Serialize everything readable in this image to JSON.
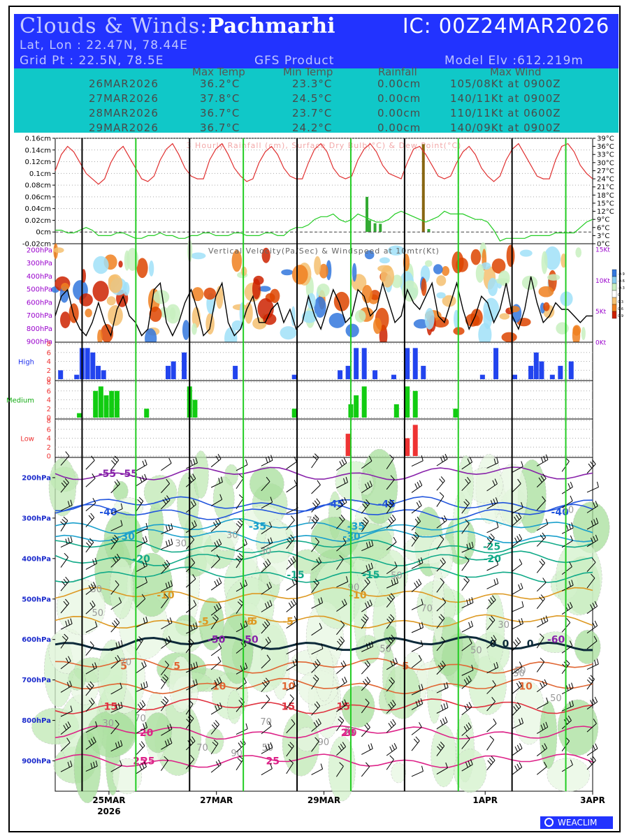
{
  "header": {
    "title_prefix": "Clouds & Winds:",
    "location": "Pachmarhi",
    "ic": "IC: 00Z24MAR2026",
    "latlon": "Lat, Lon : 22.47N, 78.44E",
    "gridpt": "Grid Pt  : 22.5N, 78.5E",
    "product": "GFS Product",
    "model_elv": "Model Elv :612.219m"
  },
  "summary": {
    "columns": [
      "Max Temp",
      "Min Temp",
      "Rainfall",
      "Max Wind"
    ],
    "rows": [
      {
        "date": "26MAR2026",
        "max": "36.2°C",
        "min": "23.3°C",
        "rain": "0.00cm",
        "wind": "105/08Kt at 0900Z"
      },
      {
        "date": "27MAR2026",
        "max": "37.8°C",
        "min": "24.5°C",
        "rain": "0.00cm",
        "wind": "140/11Kt at 0900Z"
      },
      {
        "date": "28MAR2026",
        "max": "36.7°C",
        "min": "23.7°C",
        "rain": "0.00cm",
        "wind": "110/11Kt at 0600Z"
      },
      {
        "date": "29MAR2026",
        "max": "36.7°C",
        "min": "24.2°C",
        "rain": "0.00cm",
        "wind": "140/09Kt at 0900Z"
      }
    ]
  },
  "colors": {
    "header_blue": "#2233ff",
    "table_cyan": "#10c8c8",
    "temp_line": "#e03030",
    "dew_line": "#22cc22",
    "high_cloud": "#2244ee",
    "medium_cloud": "#11cc11",
    "low_cloud": "#ee3333",
    "day_line": "#22cc22",
    "axis_blue": "#1a2acc",
    "axis_purple": "#9900cc"
  },
  "chart_data": {
    "type": "meteogram",
    "x_labels": [
      {
        "text": "25MAR",
        "sub": "2026",
        "t": 1.0
      },
      {
        "text": "27MAR",
        "sub": "",
        "t": 3.0
      },
      {
        "text": "29MAR",
        "sub": "",
        "t": 5.0
      },
      {
        "text": "1APR",
        "sub": "",
        "t": 8.0
      },
      {
        "text": "3APR",
        "sub": "",
        "t": 10.0
      }
    ],
    "x_range_days": [
      0,
      10.0
    ],
    "midnight_lines": [
      0.5,
      2.5,
      4.5,
      6.5,
      8.5
    ],
    "noon_lines": [
      1.5,
      3.5,
      5.5,
      7.5,
      9.5
    ],
    "rain_panel": {
      "title": "3 Hourly Rainfall (cm), Surface Dry Bulb(°C) & Dew Point(°C)",
      "left_ticks": [
        "0.16cm",
        "0.14cm",
        "0.12cm",
        "0.1cm",
        "0.08cm",
        "0.06cm",
        "0.04cm",
        "0.02cm",
        "0cm",
        "-0.02cm"
      ],
      "left_range": [
        -0.02,
        0.16
      ],
      "right_ticks": [
        "39°C",
        "36°C",
        "33°C",
        "30°C",
        "27°C",
        "24°C",
        "21°C",
        "18°C",
        "15°C",
        "12°C",
        "9°C",
        "6°C",
        "3°C",
        "0°C"
      ],
      "right_range": [
        0,
        39
      ],
      "temperature": [
        27,
        33,
        36,
        34,
        30,
        26,
        24,
        22,
        24,
        30,
        34,
        36,
        32,
        28,
        24,
        23,
        25,
        31,
        35,
        37,
        33,
        28,
        25,
        24,
        24,
        31,
        35,
        37,
        33,
        28,
        25,
        23,
        24,
        30,
        34,
        36,
        33,
        28,
        25,
        24,
        24,
        30,
        35,
        37,
        34,
        28,
        25,
        24,
        25,
        31,
        35,
        37,
        34,
        29,
        26,
        25,
        24,
        30,
        35,
        36,
        33,
        29,
        25,
        24,
        25,
        30,
        34,
        36,
        33,
        28,
        25,
        23,
        25,
        31,
        35,
        37,
        33,
        29,
        25,
        24,
        24,
        31,
        36,
        37,
        34,
        29,
        26,
        24
      ],
      "dewpoint": [
        5,
        5,
        4,
        4,
        5,
        6,
        5,
        3,
        3,
        3,
        4,
        4,
        3,
        2,
        2,
        3,
        3,
        4,
        3,
        3,
        2,
        2,
        3,
        3,
        4,
        4,
        3,
        3,
        3,
        4,
        4,
        3,
        3,
        3,
        4,
        4,
        3,
        3,
        5,
        6,
        6,
        7,
        9,
        10,
        10,
        11,
        9,
        8,
        9,
        11,
        10,
        9,
        8,
        8,
        9,
        11,
        12,
        11,
        10,
        9,
        8,
        9,
        10,
        12,
        11,
        11,
        11,
        10,
        9,
        9,
        8,
        5,
        1,
        2,
        2,
        2,
        2,
        3,
        3,
        3,
        3,
        4,
        4,
        4,
        4,
        6,
        8,
        9
      ],
      "rain": [
        {
          "t": 5.8,
          "v": 0.06
        },
        {
          "t": 5.85,
          "v": 0.02
        },
        {
          "t": 5.95,
          "v": 0.015
        },
        {
          "t": 6.05,
          "v": 0.014
        },
        {
          "t": 6.85,
          "v": 0.15
        },
        {
          "t": 6.95,
          "v": 0.005
        }
      ]
    },
    "vv_panel": {
      "title": "Vertical Velocity(Pa/Sec) & Windspeed at 10mtr(Kt)",
      "levels": [
        "200hPa",
        "300hPa",
        "400hPa",
        "500hPa",
        "600hPa",
        "700hPa",
        "800hPa",
        "900hPa"
      ],
      "right_ticks": [
        "15Kt",
        "10Kt",
        "5Kt",
        "0Kt"
      ],
      "windspeed": [
        4,
        7,
        8,
        4,
        2,
        1,
        3,
        6,
        3,
        1,
        5,
        7,
        4,
        3,
        1,
        2,
        8,
        9,
        3,
        1,
        3,
        6,
        8,
        5,
        1,
        2,
        7,
        9,
        3,
        1,
        2,
        5,
        7,
        3,
        3,
        5,
        6,
        3,
        5,
        2,
        3,
        7,
        4,
        2,
        5,
        8,
        6,
        3,
        4,
        8,
        7,
        4,
        5,
        9,
        6,
        3,
        4,
        8,
        6,
        5,
        7,
        9,
        4,
        3,
        6,
        9,
        5,
        2,
        4,
        7,
        6,
        3,
        5,
        9,
        4,
        2,
        5,
        10,
        6,
        3,
        4,
        6,
        5,
        5,
        4,
        3,
        4,
        4
      ],
      "legend": [
        "-0.9",
        "-0.6",
        "-0.3",
        "0",
        "0.3",
        "0.6",
        "0.9"
      ]
    },
    "cloud_panels": [
      {
        "name": "High",
        "max": 8,
        "ticks": [
          "8",
          "6",
          "4",
          "2",
          "0"
        ],
        "values": [
          [
            0.1,
            2
          ],
          [
            0.4,
            1
          ],
          [
            0.5,
            7
          ],
          [
            0.6,
            7
          ],
          [
            0.7,
            6
          ],
          [
            0.8,
            3
          ],
          [
            0.9,
            2
          ],
          [
            2.1,
            3
          ],
          [
            2.2,
            4
          ],
          [
            2.4,
            6
          ],
          [
            3.35,
            3
          ],
          [
            4.45,
            1
          ],
          [
            5.3,
            2
          ],
          [
            5.45,
            3
          ],
          [
            5.6,
            7
          ],
          [
            5.75,
            7
          ],
          [
            5.95,
            2
          ],
          [
            6.3,
            1
          ],
          [
            6.55,
            7
          ],
          [
            6.7,
            7
          ],
          [
            6.85,
            3
          ],
          [
            7.95,
            1
          ],
          [
            8.2,
            7
          ],
          [
            8.55,
            1
          ],
          [
            8.85,
            3
          ],
          [
            8.95,
            6
          ],
          [
            9.05,
            4
          ],
          [
            9.25,
            1
          ],
          [
            9.4,
            3
          ],
          [
            9.6,
            4
          ]
        ]
      },
      {
        "name": "Medium",
        "max": 8,
        "ticks": [
          "8",
          "6",
          "4",
          "2",
          "0"
        ],
        "values": [
          [
            0.45,
            1
          ],
          [
            0.75,
            6
          ],
          [
            0.85,
            7
          ],
          [
            0.95,
            5
          ],
          [
            1.05,
            6
          ],
          [
            1.15,
            6
          ],
          [
            1.7,
            2
          ],
          [
            2.5,
            7
          ],
          [
            2.6,
            4
          ],
          [
            4.45,
            2
          ],
          [
            5.5,
            3
          ],
          [
            5.6,
            5
          ],
          [
            5.75,
            7
          ],
          [
            6.35,
            3
          ],
          [
            6.55,
            7
          ],
          [
            6.7,
            6
          ],
          [
            7.45,
            2
          ]
        ]
      },
      {
        "name": "Low",
        "max": 8,
        "ticks": [
          "8",
          "6",
          "4",
          "2",
          "0"
        ],
        "values": [
          [
            5.45,
            5
          ],
          [
            6.55,
            4
          ],
          [
            6.7,
            7
          ]
        ]
      }
    ],
    "upper_panel": {
      "levels": [
        "200hPa",
        "300hPa",
        "400hPa",
        "500hPa",
        "600hPa",
        "700hPa",
        "800hPa",
        "900hPa"
      ],
      "isotherm_labels": [
        "-55",
        "-60",
        "-55",
        "-50",
        "-50",
        "-45",
        "-45",
        "-40",
        "-40",
        "-35",
        "-35",
        "-30",
        "-30",
        "-25",
        "-20",
        "-20",
        "-15",
        "-15",
        "-5",
        "-10",
        "-10",
        "-5",
        "-5",
        "-5",
        "0",
        "0",
        "0",
        "5",
        "5",
        "5",
        "10",
        "10",
        "10",
        "15",
        "15",
        "15",
        "20",
        "20",
        "20",
        "25",
        "25",
        "25"
      ],
      "humidity_labels": [
        "90",
        "70",
        "90",
        "70",
        "50",
        "50",
        "30",
        "50",
        "30",
        "50",
        "50",
        "30",
        "70",
        "70",
        "90",
        "70",
        "70",
        "50",
        "70",
        "50",
        "30",
        "30",
        "50",
        "50",
        "30"
      ],
      "isotherms": [
        {
          "label": "-55",
          "hpa": 190
        },
        {
          "label": "-45",
          "hpa": 265
        },
        {
          "label": "-40",
          "hpa": 285
        },
        {
          "label": "-35",
          "hpa": 320
        },
        {
          "label": "-30",
          "hpa": 345
        },
        {
          "label": "-25",
          "hpa": 370
        },
        {
          "label": "-20",
          "hpa": 400
        },
        {
          "label": "-15",
          "hpa": 440
        },
        {
          "label": "-10",
          "hpa": 490
        },
        {
          "label": "-5",
          "hpa": 555
        },
        {
          "label": "0",
          "hpa": 610
        },
        {
          "label": "5",
          "hpa": 665
        },
        {
          "label": "10",
          "hpa": 715
        },
        {
          "label": "15",
          "hpa": 765
        },
        {
          "label": "20",
          "hpa": 830
        },
        {
          "label": "25",
          "hpa": 900
        }
      ]
    }
  },
  "footer": {
    "brand": "WEACLIM"
  }
}
